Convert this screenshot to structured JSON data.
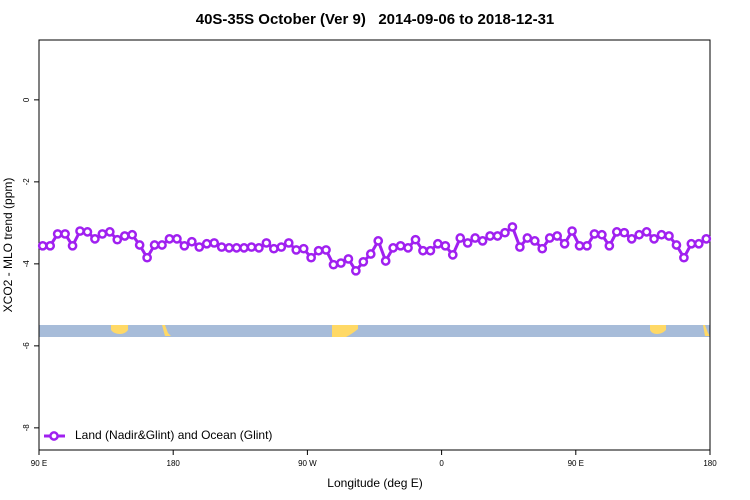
{
  "chart_data": {
    "type": "line",
    "title": "40S-35S October (Ver 9)   2014-09-06 to 2018-12-31",
    "x_label": "Longitude (deg E)",
    "y_label": "XCO2 - MLO trend (ppm)",
    "xlim": [
      90,
      540
    ],
    "ylim": [
      -8.54,
      1.46
    ],
    "xticks": [
      {
        "value": 90,
        "label": "90 E"
      },
      180,
      {
        "value": 270,
        "label": "90 W"
      },
      {
        "value": 360,
        "label": "0"
      },
      {
        "value": 450,
        "label": "90 E"
      },
      {
        "value": 540,
        "label": "180"
      }
    ],
    "yticks": [
      0,
      -2,
      -4,
      -6,
      -8
    ],
    "legend": "bottom-left",
    "x": [
      92.5,
      97.5,
      102.5,
      107.5,
      112.5,
      117.5,
      122.5,
      127.5,
      132.5,
      137.5,
      142.5,
      147.5,
      152.5,
      157.5,
      162.5,
      167.5,
      172.5,
      177.5,
      182.5,
      187.5,
      192.5,
      197.5,
      202.5,
      207.5,
      212.5,
      217.5,
      222.5,
      227.5,
      232.5,
      237.5,
      242.5,
      247.5,
      252.5,
      257.5,
      262.5,
      267.5,
      272.5,
      277.5,
      282.5,
      287.5,
      292.5,
      297.5,
      302.5,
      307.5,
      312.5,
      317.5,
      322.5,
      327.5,
      332.5,
      337.5,
      342.5,
      347.5,
      352.5,
      357.5,
      362.5,
      367.5,
      372.5,
      377.5,
      382.5,
      387.5,
      392.5,
      397.5,
      402.5,
      407.5,
      412.5,
      417.5,
      422.5,
      427.5,
      432.5,
      437.5,
      442.5,
      447.5,
      452.5,
      457.5,
      462.5,
      467.5,
      472.5,
      477.5,
      482.5,
      487.5,
      492.5,
      497.5,
      502.5,
      507.5,
      512.5,
      517.5,
      522.5,
      527.5,
      532.5,
      537.5
    ],
    "series": [
      {
        "name": "Land (Nadir&Glint) and Ocean (Glint)",
        "color": "#a020f0",
        "values": [
          -3.56,
          -3.56,
          -3.27,
          -3.27,
          -3.56,
          -3.2,
          -3.22,
          -3.39,
          -3.27,
          -3.22,
          -3.41,
          -3.32,
          -3.29,
          -3.54,
          -3.85,
          -3.54,
          -3.54,
          -3.39,
          -3.39,
          -3.56,
          -3.46,
          -3.59,
          -3.51,
          -3.49,
          -3.59,
          -3.61,
          -3.61,
          -3.61,
          -3.59,
          -3.61,
          -3.49,
          -3.63,
          -3.59,
          -3.49,
          -3.66,
          -3.63,
          -3.85,
          -3.68,
          -3.66,
          -4.02,
          -3.98,
          -3.88,
          -4.17,
          -3.95,
          -3.76,
          -3.44,
          -3.93,
          -3.61,
          -3.56,
          -3.61,
          -3.41,
          -3.68,
          -3.68,
          -3.51,
          -3.56,
          -3.78,
          -3.37,
          -3.49,
          -3.37,
          -3.44,
          -3.32,
          -3.32,
          -3.24,
          -3.1,
          -3.59,
          -3.37,
          -3.44,
          -3.63,
          -3.37,
          -3.32,
          -3.51,
          -3.2,
          -3.56,
          -3.56,
          -3.27,
          -3.29,
          -3.56,
          -3.22,
          -3.24,
          -3.39,
          -3.29,
          -3.22,
          -3.39,
          -3.29,
          -3.32,
          -3.54,
          -3.85,
          -3.51,
          -3.51,
          -3.39
        ]
      }
    ]
  }
}
